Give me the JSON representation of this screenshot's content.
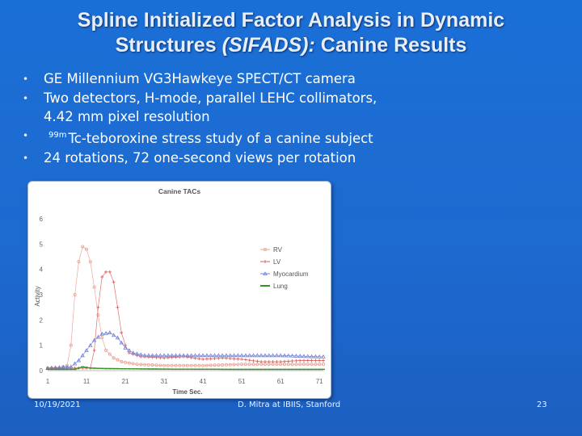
{
  "slide": {
    "title_line1": "Spline Initialized Factor Analysis in Dynamic",
    "title_line2_pre": "Structures ",
    "title_line2_em": "(SIFADS):",
    "title_line2_post": " Canine Results",
    "bullets": [
      {
        "text": "GE Millennium VG3Hawkeye SPECT/CT camera"
      },
      {
        "text": "Two detectors, H-mode, parallel LEHC collimators,",
        "cont": "4.42 mm pixel resolution"
      },
      {
        "sup": "99m",
        "text": "Tc-teboroxine stress study of a canine subject"
      },
      {
        "text": "24 rotations, 72 one-second views per rotation"
      }
    ],
    "bullet_symbol": "•",
    "footer_date": "10/19/2021",
    "footer_credit": "D. Mitra at IBIIS, Stanford",
    "page_number": "23"
  },
  "colors": {
    "background": "#1a6fd6",
    "rv": "#e8a090",
    "lv": "#8f9ce0",
    "myocardium": "#c0a890",
    "lung": "#3a8f2a"
  },
  "chart_data": {
    "type": "line",
    "title": "Canine TACs",
    "xlabel": "Time Sec.",
    "ylabel": "Activity",
    "xlim": [
      1,
      72
    ],
    "ylim": [
      0,
      6
    ],
    "xticks": [
      1,
      11,
      21,
      31,
      41,
      51,
      61,
      71
    ],
    "yticks": [
      0,
      1,
      2,
      3,
      4,
      5,
      6
    ],
    "grid": false,
    "legend_position": "right",
    "series": [
      {
        "name": "RV",
        "color": "#e8a090",
        "marker": "circle",
        "points": [
          [
            1,
            0.1
          ],
          [
            4,
            0.1
          ],
          [
            6,
            0.2
          ],
          [
            7,
            1.0
          ],
          [
            8,
            3.0
          ],
          [
            9,
            4.3
          ],
          [
            10,
            4.9
          ],
          [
            11,
            4.8
          ],
          [
            12,
            4.3
          ],
          [
            13,
            3.3
          ],
          [
            14,
            2.2
          ],
          [
            15,
            1.3
          ],
          [
            16,
            0.8
          ],
          [
            18,
            0.5
          ],
          [
            20,
            0.35
          ],
          [
            24,
            0.25
          ],
          [
            31,
            0.2
          ],
          [
            41,
            0.2
          ],
          [
            51,
            0.25
          ],
          [
            61,
            0.25
          ],
          [
            71,
            0.25
          ]
        ]
      },
      {
        "name": "LV",
        "color": "#e06060",
        "marker": "plus",
        "points": [
          [
            1,
            0.1
          ],
          [
            12,
            0.1
          ],
          [
            13,
            0.8
          ],
          [
            14,
            2.5
          ],
          [
            15,
            3.7
          ],
          [
            16,
            3.9
          ],
          [
            17,
            3.9
          ],
          [
            18,
            3.5
          ],
          [
            19,
            2.5
          ],
          [
            20,
            1.5
          ],
          [
            21,
            1.0
          ],
          [
            22,
            0.7
          ],
          [
            25,
            0.55
          ],
          [
            31,
            0.5
          ],
          [
            36,
            0.55
          ],
          [
            41,
            0.45
          ],
          [
            46,
            0.5
          ],
          [
            51,
            0.45
          ],
          [
            56,
            0.35
          ],
          [
            61,
            0.35
          ],
          [
            66,
            0.4
          ],
          [
            71,
            0.4
          ]
        ]
      },
      {
        "name": "Myocardium",
        "color": "#7080d8",
        "marker": "triangle",
        "points": [
          [
            1,
            0.1
          ],
          [
            7,
            0.15
          ],
          [
            9,
            0.4
          ],
          [
            11,
            0.8
          ],
          [
            13,
            1.2
          ],
          [
            15,
            1.45
          ],
          [
            17,
            1.5
          ],
          [
            19,
            1.3
          ],
          [
            21,
            0.9
          ],
          [
            23,
            0.7
          ],
          [
            26,
            0.6
          ],
          [
            31,
            0.6
          ],
          [
            41,
            0.6
          ],
          [
            51,
            0.6
          ],
          [
            61,
            0.6
          ],
          [
            71,
            0.55
          ]
        ]
      },
      {
        "name": "Lung",
        "color": "#3a8f2a",
        "marker": "dash",
        "points": [
          [
            1,
            0.05
          ],
          [
            8,
            0.05
          ],
          [
            10,
            0.15
          ],
          [
            12,
            0.1
          ],
          [
            16,
            0.08
          ],
          [
            31,
            0.06
          ],
          [
            51,
            0.05
          ],
          [
            71,
            0.05
          ]
        ]
      }
    ]
  }
}
